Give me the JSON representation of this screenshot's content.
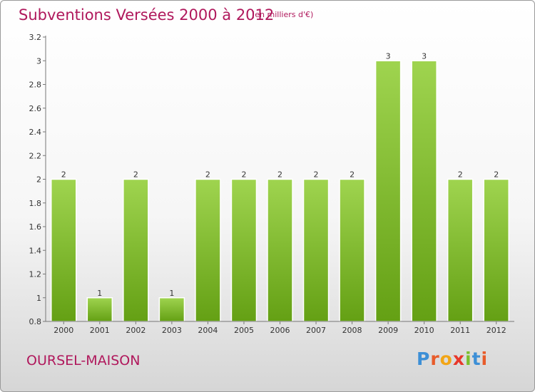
{
  "title": "Subventions Versées 2000 à 2012",
  "unit_note": "(en milliers d'€)",
  "commune": "OURSEL-MAISON",
  "logo": {
    "text": "Proxiti",
    "letters": [
      {
        "char": "P",
        "color": "#3d8fd6"
      },
      {
        "char": "r",
        "color": "#e85b2a"
      },
      {
        "char": "o",
        "color": "#f2a516"
      },
      {
        "char": "x",
        "color": "#e8372a"
      },
      {
        "char": "i",
        "color": "#7cbf2c"
      },
      {
        "char": "t",
        "color": "#3d8fd6"
      },
      {
        "char": "i",
        "color": "#e85b2a"
      }
    ]
  },
  "chart_data": {
    "type": "bar",
    "title": "Subventions Versées 2000 à 2012",
    "subtitle": "(en milliers d'€)",
    "categories": [
      "2000",
      "2001",
      "2002",
      "2003",
      "2004",
      "2005",
      "2006",
      "2007",
      "2008",
      "2009",
      "2010",
      "2011",
      "2012"
    ],
    "values": [
      2,
      1,
      2,
      1,
      2,
      2,
      2,
      2,
      2,
      3,
      3,
      2,
      2
    ],
    "data_labels": [
      "2",
      "1",
      "2",
      "1",
      "2",
      "2",
      "2",
      "2",
      "2",
      "3",
      "3",
      "2",
      "2"
    ],
    "ylim": [
      0.8,
      3.2
    ],
    "yticks": [
      0.8,
      1,
      1.2,
      1.4,
      1.6,
      1.8,
      2,
      2.2,
      2.4,
      2.6,
      2.8,
      3,
      3.2
    ],
    "ytick_labels": [
      "0.8",
      "1",
      "1.2",
      "1.4",
      "1.6",
      "1.8",
      "2",
      "2.2",
      "2.4",
      "2.6",
      "2.8",
      "3",
      "3.2"
    ],
    "grid": false,
    "bar_color_top": "#9fd44f",
    "bar_color_bottom": "#64a014"
  }
}
